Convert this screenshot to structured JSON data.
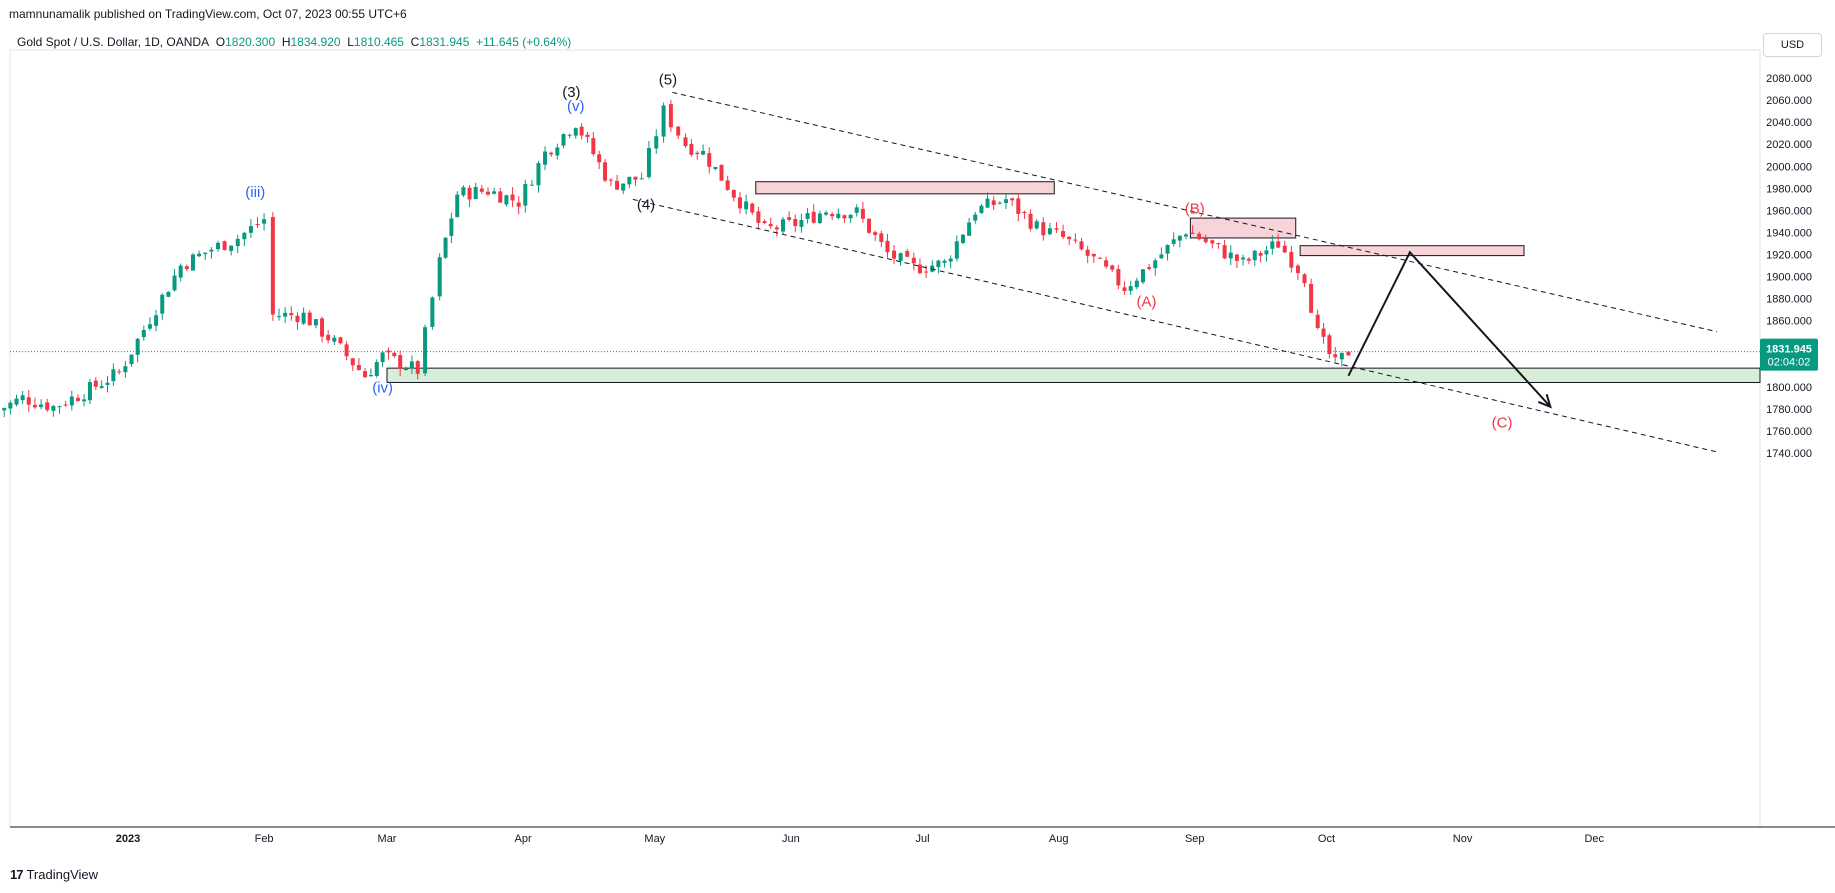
{
  "publisher": "mamnunamalik published on TradingView.com, Oct 07, 2023 00:55 UTC+6",
  "legend": {
    "symbol": "Gold Spot / U.S. Dollar, 1D, OANDA",
    "o_label": "O",
    "o_value": "1820.300",
    "h_label": "H",
    "h_value": "1834.920",
    "l_label": "L",
    "l_value": "1810.465",
    "c_label": "C",
    "c_value": "1831.945",
    "change": "+11.645 (+0.64%)"
  },
  "currency_button": "USD",
  "footer_logo": "TradingView",
  "colors": {
    "up": "#089981",
    "down": "#f23645",
    "wave_blue": "#2962ff",
    "wave_red": "#f23645",
    "zone_red": "#f8d4d8",
    "zone_green": "#d8eed8"
  },
  "chart_data": {
    "type": "candlestick",
    "yaxis_ticks": [
      2080,
      2060,
      2040,
      2020,
      2000,
      1980,
      1960,
      1940,
      1920,
      1900,
      1880,
      1860,
      1840,
      1820,
      1800,
      1780,
      1760,
      1740
    ],
    "ylim": [
      1733,
      2088
    ],
    "xaxis_labels": [
      {
        "label": "2023",
        "x_date": "2023-01-01"
      },
      {
        "label": "Feb",
        "x_date": "2023-02-01"
      },
      {
        "label": "Mar",
        "x_date": "2023-03-01"
      },
      {
        "label": "Apr",
        "x_date": "2023-04-01"
      },
      {
        "label": "May",
        "x_date": "2023-05-01"
      },
      {
        "label": "Jun",
        "x_date": "2023-06-01"
      },
      {
        "label": "Jul",
        "x_date": "2023-07-01"
      },
      {
        "label": "Aug",
        "x_date": "2023-08-01"
      },
      {
        "label": "Sep",
        "x_date": "2023-09-01"
      },
      {
        "label": "Oct",
        "x_date": "2023-10-01"
      },
      {
        "label": "Nov",
        "x_date": "2023-11-01"
      },
      {
        "label": "Dec",
        "x_date": "2023-12-01"
      }
    ],
    "price_label": {
      "value": "1831.945",
      "countdown": "02:04:02"
    },
    "close_series": [
      [
        "2022-12-01",
        1776
      ],
      [
        "2022-12-08",
        1790
      ],
      [
        "2022-12-15",
        1782
      ],
      [
        "2022-12-22",
        1795
      ],
      [
        "2022-12-30",
        1813
      ],
      [
        "2023-01-06",
        1862
      ],
      [
        "2023-01-13",
        1910
      ],
      [
        "2023-01-20",
        1925
      ],
      [
        "2023-01-26",
        1935
      ],
      [
        "2023-02-01",
        1952
      ],
      [
        "2023-02-03",
        1865
      ],
      [
        "2023-02-10",
        1865
      ],
      [
        "2023-02-17",
        1840
      ],
      [
        "2023-02-24",
        1810
      ],
      [
        "2023-02-28",
        1828
      ],
      [
        "2023-03-08",
        1815
      ],
      [
        "2023-03-13",
        1913
      ],
      [
        "2023-03-17",
        1975
      ],
      [
        "2023-03-24",
        1978
      ],
      [
        "2023-03-31",
        1968
      ],
      [
        "2023-04-06",
        2012
      ],
      [
        "2023-04-13",
        2040
      ],
      [
        "2023-04-21",
        1983
      ],
      [
        "2023-04-28",
        1990
      ],
      [
        "2023-05-03",
        2050
      ],
      [
        "2023-05-08",
        2020
      ],
      [
        "2023-05-12",
        2012
      ],
      [
        "2023-05-19",
        1975
      ],
      [
        "2023-05-26",
        1942
      ],
      [
        "2023-06-02",
        1948
      ],
      [
        "2023-06-09",
        1960
      ],
      [
        "2023-06-16",
        1958
      ],
      [
        "2023-06-23",
        1921
      ],
      [
        "2023-06-29",
        1908
      ],
      [
        "2023-07-06",
        1912
      ],
      [
        "2023-07-13",
        1960
      ],
      [
        "2023-07-20",
        1970
      ],
      [
        "2023-07-27",
        1945
      ],
      [
        "2023-08-02",
        1935
      ],
      [
        "2023-08-09",
        1915
      ],
      [
        "2023-08-16",
        1890
      ],
      [
        "2023-08-23",
        1915
      ],
      [
        "2023-08-30",
        1942
      ],
      [
        "2023-09-05",
        1928
      ],
      [
        "2023-09-12",
        1912
      ],
      [
        "2023-09-20",
        1930
      ],
      [
        "2023-09-26",
        1900
      ],
      [
        "2023-09-29",
        1848
      ],
      [
        "2023-10-03",
        1820
      ],
      [
        "2023-10-06",
        1832
      ]
    ],
    "zones": [
      {
        "from": "2023-05-24",
        "to": "2023-07-31",
        "low": 1975,
        "high": 1986,
        "color": "red"
      },
      {
        "from": "2023-08-31",
        "to": "2023-09-24",
        "low": 1935,
        "high": 1953,
        "color": "red"
      },
      {
        "from": "2023-09-25",
        "to": "2023-11-15",
        "low": 1919,
        "high": 1928,
        "color": "red"
      },
      {
        "from": "2023-03-01",
        "to": "2023-12-31",
        "low": 1804,
        "high": 1817,
        "color": "green"
      }
    ],
    "channel_lines": [
      {
        "from": [
          "2023-05-05",
          2067
        ],
        "to": [
          "2023-12-29",
          1850
        ]
      },
      {
        "from": [
          "2023-04-26",
          1970
        ],
        "to": [
          "2023-12-29",
          1741
        ]
      }
    ],
    "projection_path": [
      [
        "2023-10-06",
        1810
      ],
      [
        "2023-10-20",
        1922
      ],
      [
        "2023-11-21",
        1782
      ]
    ],
    "wave_labels": [
      {
        "text": "(iii)",
        "x_date": "2023-01-30",
        "price": 1972,
        "color": "blue"
      },
      {
        "text": "(iv)",
        "x_date": "2023-02-28",
        "price": 1795,
        "color": "blue"
      },
      {
        "text": "(v)",
        "x_date": "2023-04-13",
        "price": 2050,
        "color": "blue"
      },
      {
        "text": "(3)",
        "x_date": "2023-04-12",
        "price": 2063,
        "color": "black"
      },
      {
        "text": "(4)",
        "x_date": "2023-04-29",
        "price": 1961,
        "color": "black"
      },
      {
        "text": "(5)",
        "x_date": "2023-05-04",
        "price": 2074,
        "color": "black"
      },
      {
        "text": "(A)",
        "x_date": "2023-08-21",
        "price": 1873,
        "color": "red"
      },
      {
        "text": "(B)",
        "x_date": "2023-09-01",
        "price": 1957,
        "color": "red"
      },
      {
        "text": "(C)",
        "x_date": "2023-11-10",
        "price": 1763,
        "color": "red"
      }
    ]
  }
}
